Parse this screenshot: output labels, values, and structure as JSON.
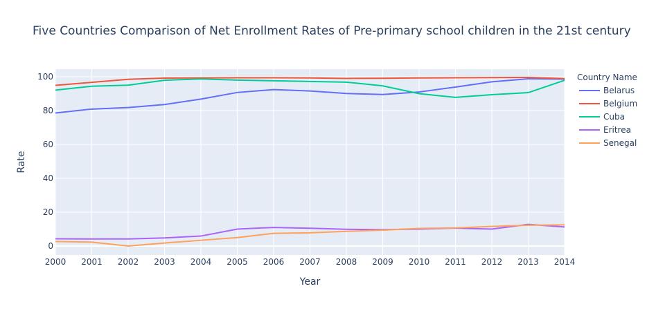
{
  "chart_data": {
    "type": "line",
    "title": "Five Countries Comparison of Net Enrollment Rates of Pre-primary school children in the 21st century",
    "xlabel": "Year",
    "ylabel": "Rate",
    "x": [
      2000,
      2001,
      2002,
      2003,
      2004,
      2005,
      2006,
      2007,
      2008,
      2009,
      2010,
      2011,
      2012,
      2013,
      2014
    ],
    "xlim": [
      2000,
      2014
    ],
    "ylim": [
      -5.3,
      104.5
    ],
    "yticks": [
      0,
      20,
      40,
      60,
      80,
      100
    ],
    "grid": true,
    "legend_title": "Country Name",
    "legend_position": "right",
    "series": [
      {
        "name": "Belarus",
        "color": "#636efa",
        "values": [
          78.6,
          80.9,
          81.8,
          83.6,
          86.8,
          90.7,
          92.4,
          91.6,
          90.1,
          89.5,
          91.0,
          93.9,
          97.0,
          98.8,
          98.6
        ]
      },
      {
        "name": "Belgium",
        "color": "#ef553b",
        "values": [
          94.9,
          96.7,
          98.5,
          99.2,
          99.3,
          99.4,
          99.4,
          99.3,
          99.0,
          99.1,
          99.3,
          99.4,
          99.5,
          99.6,
          98.9
        ]
      },
      {
        "name": "Cuba",
        "color": "#00cc96",
        "values": [
          92.1,
          94.4,
          95.0,
          97.9,
          98.7,
          98.0,
          97.6,
          97.2,
          96.8,
          94.6,
          90.0,
          87.8,
          89.4,
          90.6,
          97.9
        ]
      },
      {
        "name": "Eritrea",
        "color": "#ab63fa",
        "values": [
          4.3,
          4.2,
          4.2,
          4.8,
          5.9,
          10.0,
          11.0,
          10.5,
          9.9,
          9.7,
          10.0,
          10.6,
          10.0,
          12.8,
          11.3
        ]
      },
      {
        "name": "Senegal",
        "color": "#ffa15a",
        "values": [
          2.7,
          2.3,
          0.0,
          1.8,
          3.4,
          5.0,
          7.5,
          7.8,
          8.7,
          9.4,
          10.4,
          10.7,
          11.6,
          12.3,
          12.5
        ]
      }
    ]
  }
}
